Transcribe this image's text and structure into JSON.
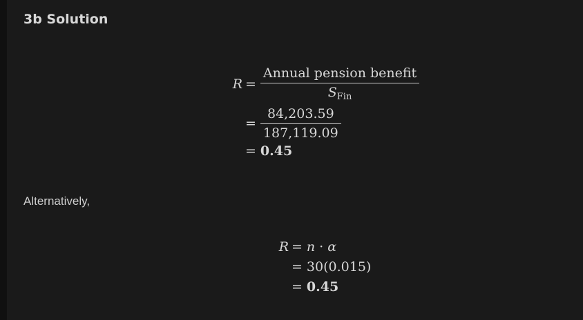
{
  "heading": "3b Solution",
  "block1": {
    "lhs": "R",
    "eq": "=",
    "frac1_num": "Annual pension benefit",
    "frac1_den_var": "S",
    "frac1_den_sub": "Fin",
    "frac2_num": "84,203.59",
    "frac2_den": "187,119.09",
    "result": "0.45"
  },
  "alternative_text": "Alternatively,",
  "block2": {
    "lhs": "R",
    "eq": "=",
    "rhs_n": "n",
    "rhs_dot": "·",
    "rhs_alpha": "α",
    "line2": "30(0.015)",
    "result": "0.45"
  }
}
